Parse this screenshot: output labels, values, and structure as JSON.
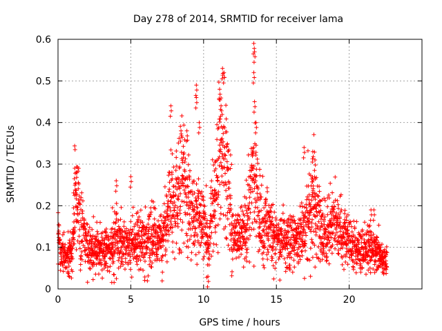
{
  "chart_data": {
    "type": "scatter",
    "title": "Day 278 of 2014, SRMTID for receiver lama",
    "xlabel": "GPS time / hours",
    "ylabel": "SRMTID / TECUs",
    "xlim": [
      0,
      25
    ],
    "ylim": [
      0,
      0.6
    ],
    "x_ticks": [
      0,
      5,
      10,
      15,
      20
    ],
    "y_ticks": [
      0,
      0.1,
      0.2,
      0.3,
      0.4,
      0.5,
      0.6
    ],
    "x_tick_labels": [
      "0",
      "5",
      "10",
      "15",
      "20"
    ],
    "y_tick_labels": [
      "0",
      "0.1",
      "0.2",
      "0.3",
      "0.4",
      "0.5",
      "0.6"
    ],
    "grid": true,
    "marker": "+",
    "color": "#ff0000",
    "sampling_interval_hours": 0.0125,
    "series": [
      {
        "name": "SRMTID",
        "profile": [
          [
            0.0,
            0.12
          ],
          [
            0.5,
            0.07
          ],
          [
            1.0,
            0.09
          ],
          [
            1.2,
            0.23
          ],
          [
            1.5,
            0.17
          ],
          [
            2.0,
            0.1
          ],
          [
            2.5,
            0.09
          ],
          [
            3.0,
            0.1
          ],
          [
            3.5,
            0.09
          ],
          [
            4.0,
            0.13
          ],
          [
            4.5,
            0.1
          ],
          [
            5.0,
            0.11
          ],
          [
            5.5,
            0.12
          ],
          [
            6.0,
            0.12
          ],
          [
            6.5,
            0.13
          ],
          [
            7.0,
            0.12
          ],
          [
            7.5,
            0.15
          ],
          [
            7.8,
            0.25
          ],
          [
            8.0,
            0.2
          ],
          [
            8.3,
            0.22
          ],
          [
            8.6,
            0.26
          ],
          [
            9.0,
            0.2
          ],
          [
            9.5,
            0.17
          ],
          [
            10.0,
            0.16
          ],
          [
            10.3,
            0.1
          ],
          [
            10.6,
            0.2
          ],
          [
            11.0,
            0.3
          ],
          [
            11.3,
            0.34
          ],
          [
            11.6,
            0.28
          ],
          [
            12.0,
            0.14
          ],
          [
            12.5,
            0.13
          ],
          [
            13.0,
            0.14
          ],
          [
            13.4,
            0.28
          ],
          [
            13.7,
            0.24
          ],
          [
            14.0,
            0.15
          ],
          [
            14.5,
            0.14
          ],
          [
            15.0,
            0.13
          ],
          [
            15.5,
            0.11
          ],
          [
            16.0,
            0.12
          ],
          [
            16.5,
            0.13
          ],
          [
            17.0,
            0.14
          ],
          [
            17.5,
            0.22
          ],
          [
            18.0,
            0.15
          ],
          [
            18.5,
            0.14
          ],
          [
            19.0,
            0.15
          ],
          [
            19.5,
            0.13
          ],
          [
            20.0,
            0.11
          ],
          [
            20.5,
            0.1
          ],
          [
            21.0,
            0.09
          ],
          [
            21.5,
            0.1
          ],
          [
            22.0,
            0.08
          ],
          [
            22.6,
            0.06
          ]
        ],
        "spikes": [
          [
            1.15,
            0.29
          ],
          [
            1.25,
            0.28
          ],
          [
            4.0,
            0.26
          ],
          [
            5.0,
            0.27
          ],
          [
            7.75,
            0.44
          ],
          [
            8.45,
            0.38
          ],
          [
            8.85,
            0.38
          ],
          [
            9.5,
            0.46
          ],
          [
            9.5,
            0.49
          ],
          [
            9.7,
            0.4
          ],
          [
            10.3,
            0.03
          ],
          [
            11.1,
            0.48
          ],
          [
            11.3,
            0.53
          ],
          [
            11.4,
            0.52
          ],
          [
            11.2,
            0.44
          ],
          [
            13.45,
            0.59
          ],
          [
            13.5,
            0.57
          ],
          [
            13.45,
            0.52
          ],
          [
            13.5,
            0.45
          ],
          [
            13.6,
            0.4
          ],
          [
            16.9,
            0.34
          ],
          [
            17.5,
            0.33
          ],
          [
            17.65,
            0.31
          ],
          [
            21.7,
            0.19
          ],
          [
            21.5,
            0.19
          ]
        ]
      }
    ]
  }
}
